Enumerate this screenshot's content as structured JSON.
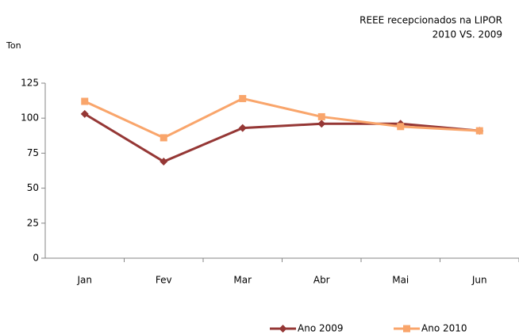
{
  "chart_data": {
    "type": "line",
    "title": "REEE recepcionados na LIPOR",
    "subtitle": "2010 VS. 2009",
    "y_label": "Ton",
    "categories": [
      "Jan",
      "Fev",
      "Mar",
      "Abr",
      "Mai",
      "Jun"
    ],
    "series": [
      {
        "name": "Ano 2009",
        "color": "#953735",
        "marker": "diamond",
        "values": [
          103,
          69,
          93,
          96,
          96,
          91
        ]
      },
      {
        "name": "Ano 2010",
        "color": "#f9a56b",
        "marker": "square",
        "values": [
          112,
          86,
          114,
          101,
          94,
          91
        ]
      }
    ],
    "ylim": [
      0,
      125
    ],
    "yticks": [
      0,
      25,
      50,
      75,
      100,
      125
    ],
    "grid": false,
    "legend": "bottom"
  }
}
